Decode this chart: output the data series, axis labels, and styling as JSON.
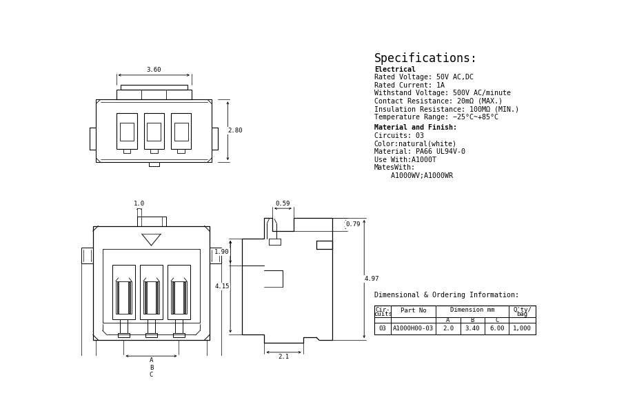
{
  "bg_color": "#ffffff",
  "line_color": "#000000",
  "specs_title": "Specifications:",
  "specs_lines": [
    [
      "Electrical",
      true
    ],
    [
      "Rated Voltage: 50V AC,DC",
      false
    ],
    [
      "Rated Current: 1A",
      false
    ],
    [
      "Withstand Voltage: 500V AC/minute",
      false
    ],
    [
      "Contact Resistance: 20mΩ (MAX.)",
      false
    ],
    [
      "Insulation Resistance: 100MΩ (MIN.)",
      false
    ],
    [
      "Temperature Range: −25°C~+85°C",
      false
    ],
    [
      "",
      false
    ],
    [
      "Material and Finish:",
      true
    ],
    [
      "Circuits: 03",
      false
    ],
    [
      "Color:natural(white)",
      false
    ],
    [
      "Material: PA66 UL94V-0",
      false
    ],
    [
      "Use With:A1000T",
      false
    ],
    [
      "MatesWith:",
      false
    ],
    [
      "    A1000WV;A1000WR",
      false
    ]
  ],
  "dim_info_title": "Dimensional & Ordering Information:",
  "table_data": [
    "03",
    "A1000H00-03",
    "2.0",
    "3.40",
    "6.00",
    "1,000"
  ]
}
